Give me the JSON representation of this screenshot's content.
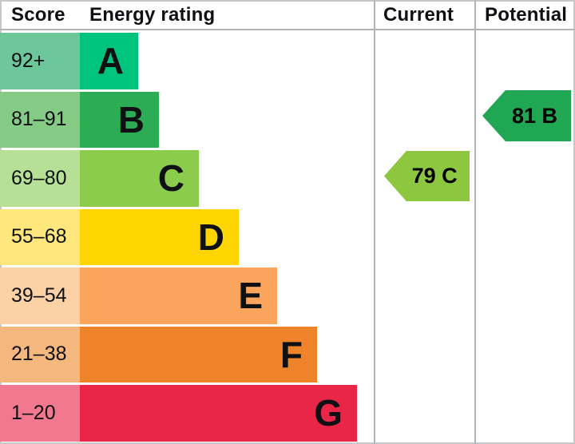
{
  "header": {
    "score": "Score",
    "energy_rating": "Energy rating",
    "current": "Current",
    "potential": "Potential"
  },
  "bands": [
    {
      "letter": "A",
      "range": "92+",
      "bar_color": "#00c47e",
      "range_color": "#6ec79b"
    },
    {
      "letter": "B",
      "range": "81–91",
      "bar_color": "#2bac55",
      "range_color": "#85cb85"
    },
    {
      "letter": "C",
      "range": "69–80",
      "bar_color": "#8ccc4d",
      "range_color": "#b5e095"
    },
    {
      "letter": "D",
      "range": "55–68",
      "bar_color": "#fed401",
      "range_color": "#ffe77d"
    },
    {
      "letter": "E",
      "range": "39–54",
      "bar_color": "#faa45c",
      "range_color": "#fbd1a5"
    },
    {
      "letter": "F",
      "range": "21–38",
      "bar_color": "#ee8329",
      "range_color": "#f4b87f"
    },
    {
      "letter": "G",
      "range": "1–20",
      "bar_color": "#e92648",
      "range_color": "#f27890"
    }
  ],
  "markers": {
    "current": {
      "label": "79 C",
      "value": 79,
      "band": "C",
      "color": "#8dc63f"
    },
    "potential": {
      "label": "81 B",
      "value": 81,
      "band": "B",
      "color": "#1fa754"
    }
  },
  "chart_data": {
    "type": "bar",
    "orientation": "horizontal",
    "title": "Energy rating",
    "categories": [
      "A",
      "B",
      "C",
      "D",
      "E",
      "F",
      "G"
    ],
    "score_ranges": [
      "92+",
      "81–91",
      "69–80",
      "55–68",
      "39–54",
      "21–38",
      "1–20"
    ],
    "relative_bar_lengths": [
      73,
      99,
      149,
      199,
      247,
      297,
      347
    ],
    "series": [
      {
        "name": "Current",
        "value": 79,
        "band": "C"
      },
      {
        "name": "Potential",
        "value": 81,
        "band": "B"
      }
    ],
    "legend_position": "top",
    "grid": false
  }
}
